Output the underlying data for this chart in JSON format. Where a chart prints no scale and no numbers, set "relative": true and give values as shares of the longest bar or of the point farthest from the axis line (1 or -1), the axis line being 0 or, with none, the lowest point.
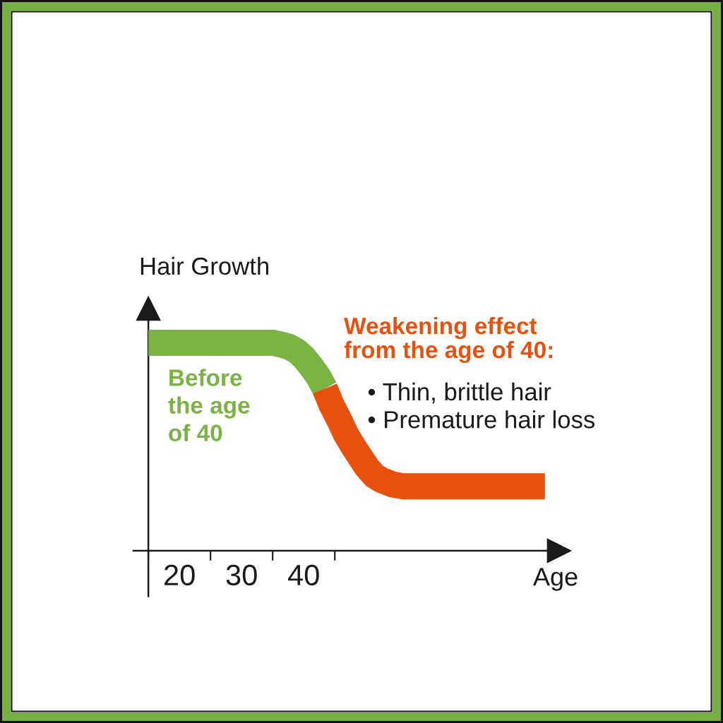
{
  "chart_data": {
    "type": "line",
    "relative": true,
    "xlabel": "Age",
    "ylabel": "Hair Growth",
    "xlim": [
      12.6,
      81.1
    ],
    "xticks": [
      {
        "value": 15,
        "label": null
      },
      20,
      {
        "value": 25,
        "label": null
      },
      30,
      {
        "value": 35,
        "label": null
      },
      40,
      {
        "value": 45,
        "label": null
      }
    ],
    "series": [
      {
        "name": "Before\nthe age\nof 40",
        "color": "#7ab342",
        "x": [
          15,
          35.1,
          36.6,
          37.7,
          38.9,
          40.0,
          41.1,
          42.3,
          43.4
        ],
        "values": [
          1.0,
          1.0,
          0.99,
          0.98,
          0.96,
          0.93,
          0.89,
          0.84,
          0.78
        ]
      },
      {
        "name": "Weakening effect\nfrom the age of 40:",
        "color": "#e8500e",
        "x": [
          43.4,
          44.5,
          45.7,
          46.8,
          48.0,
          49.1,
          50.2,
          51.4,
          52.5,
          54.2,
          55.9,
          58.2,
          78.8
        ],
        "values": [
          0.78,
          0.7,
          0.63,
          0.56,
          0.5,
          0.45,
          0.4,
          0.36,
          0.34,
          0.32,
          0.31,
          0.31,
          0.31
        ]
      }
    ],
    "annotations": [
      "• Thin, brittle hair",
      "• Premature hair loss"
    ]
  }
}
